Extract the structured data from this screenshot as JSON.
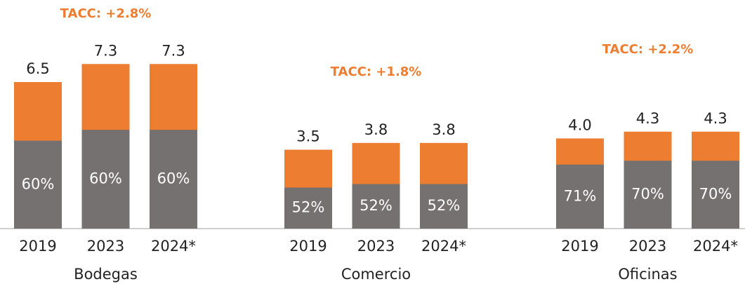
{
  "chart_data": [
    {
      "type": "bar",
      "title": "Bodegas",
      "annotation": "TACC: +2.8%",
      "categories": [
        "2019",
        "2023",
        "2024*"
      ],
      "values": [
        6.5,
        7.3,
        7.3
      ],
      "color": "#ed7d31",
      "share": {
        "values": [
          60,
          60,
          60
        ],
        "value_labels": [
          "60%",
          "60%",
          "60%"
        ],
        "color": "#767171"
      }
    },
    {
      "type": "bar",
      "title": "Comercio",
      "annotation": "TACC: +1.8%",
      "categories": [
        "2019",
        "2023",
        "2024*"
      ],
      "values": [
        3.5,
        3.8,
        3.8
      ],
      "color": "#ed7d31",
      "share": {
        "values": [
          52,
          52,
          52
        ],
        "value_labels": [
          "52%",
          "52%",
          "52%"
        ],
        "color": "#767171"
      }
    },
    {
      "type": "bar",
      "title": "Oficinas",
      "annotation": "TACC: +2.2%",
      "categories": [
        "2019",
        "2023",
        "2024*"
      ],
      "values": [
        4.0,
        4.3,
        4.3
      ],
      "value_labels": [
        "4.0",
        "4.3",
        "4.3"
      ],
      "color": "#ed7d31",
      "share": {
        "values": [
          71,
          70,
          70
        ],
        "value_labels": [
          "71%",
          "70%",
          "70%"
        ],
        "color": "#767171"
      }
    }
  ]
}
